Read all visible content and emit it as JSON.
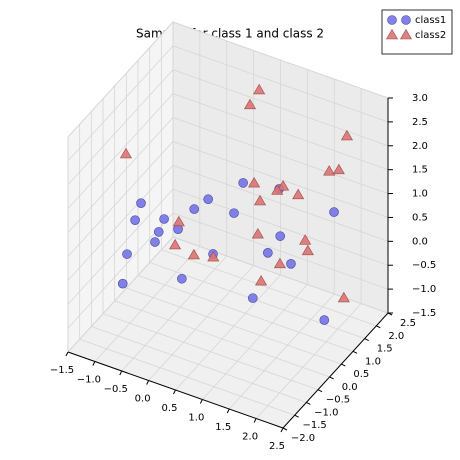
{
  "chart_data": {
    "type": "scatter3d",
    "title": "Samples for class 1 and class 2",
    "xlim": [
      -1.5,
      2.5
    ],
    "ylim": [
      -2.0,
      2.5
    ],
    "zlim": [
      -1.5,
      3.0
    ],
    "xticks": [
      {
        "value": -1.5,
        "label": "−1.5"
      },
      {
        "value": -1.0,
        "label": "−1.0"
      },
      {
        "value": -0.5,
        "label": "−0.5"
      },
      {
        "value": 0,
        "label": "0.0"
      },
      {
        "value": 0.5,
        "label": "0.5"
      },
      {
        "value": 1,
        "label": "1.0"
      },
      {
        "value": 1.5,
        "label": "1.5"
      },
      {
        "value": 2,
        "label": "2.0"
      },
      {
        "value": 2.5,
        "label": "2.5"
      }
    ],
    "yticks": [
      {
        "value": -2.0,
        "label": "−2.0"
      },
      {
        "value": -1.5,
        "label": "−1.5"
      },
      {
        "value": -1.0,
        "label": "−1.0"
      },
      {
        "value": -0.5,
        "label": "−0.5"
      },
      {
        "value": 0,
        "label": "0.0"
      },
      {
        "value": 0.5,
        "label": "0.5"
      },
      {
        "value": 1,
        "label": "1.0"
      },
      {
        "value": 1.5,
        "label": "1.5"
      },
      {
        "value": 2,
        "label": "2.0"
      },
      {
        "value": 2.5,
        "label": "2.5"
      }
    ],
    "zticks": [
      {
        "value": -1.5,
        "label": "−1.5"
      },
      {
        "value": -1.0,
        "label": "−1.0"
      },
      {
        "value": -0.5,
        "label": "−0.5"
      },
      {
        "value": 0,
        "label": "0.0"
      },
      {
        "value": 0.5,
        "label": "0.5"
      },
      {
        "value": 1,
        "label": "1.0"
      },
      {
        "value": 1.5,
        "label": "1.5"
      },
      {
        "value": 2,
        "label": "2.0"
      },
      {
        "value": 2.5,
        "label": "2.5"
      },
      {
        "value": 3,
        "label": "3.0"
      }
    ],
    "grid": true,
    "legend": "upper right",
    "series": [
      {
        "name": "class1",
        "color": "#7373e6",
        "marker": "circle",
        "x": [
          -1.01,
          -1.12,
          -0.58,
          -0.68,
          -0.32,
          -0.75,
          -1.27,
          -1.35,
          -0.25,
          -0.02,
          0.24,
          0.33,
          0.72,
          0.89,
          1.56,
          1.58,
          1.35,
          1.78,
          1.07,
          1.93,
          2.4
        ],
        "y": [
          0,
          0,
          0,
          0,
          0,
          0,
          0,
          0,
          0,
          0,
          0,
          0,
          0,
          0,
          0,
          0,
          0,
          0,
          0,
          1.5,
          0
        ],
        "z": [
          0.74,
          0.34,
          0.58,
          0.27,
          0.47,
          0.03,
          -0.43,
          -1.08,
          -0.54,
          1.01,
          1.32,
          0.21,
          1.22,
          1.92,
          2.06,
          1.08,
          0.64,
          0.58,
          -0.42,
          0.92,
          -0.35
        ]
      },
      {
        "name": "class2",
        "color": "#d97373",
        "marker": "triangle",
        "x": [
          0.32,
          0.15,
          -1.29,
          2.17,
          1.84,
          2.02,
          0.66,
          1.2,
          1.09,
          1.48,
          0.77,
          -0.74,
          0.73,
          1.61,
          -0.81,
          -0.46,
          -0.1,
          1.66,
          1.14,
          0.79,
          2.33
        ],
        "y": [
          2,
          2,
          0,
          1.5,
          1.5,
          1.5,
          1,
          1,
          1,
          1,
          1,
          1,
          1,
          1,
          1,
          1,
          1,
          1,
          1,
          1,
          1
        ],
        "z": [
          2.57,
          2.19,
          1.66,
          2.61,
          1.74,
          1.84,
          1.29,
          1.44,
          1.31,
          1.37,
          0.96,
          -0.08,
          0.25,
          0.47,
          -0.59,
          -0.66,
          -0.56,
          0.27,
          -0.21,
          -0.71,
          -0.45
        ]
      }
    ]
  }
}
